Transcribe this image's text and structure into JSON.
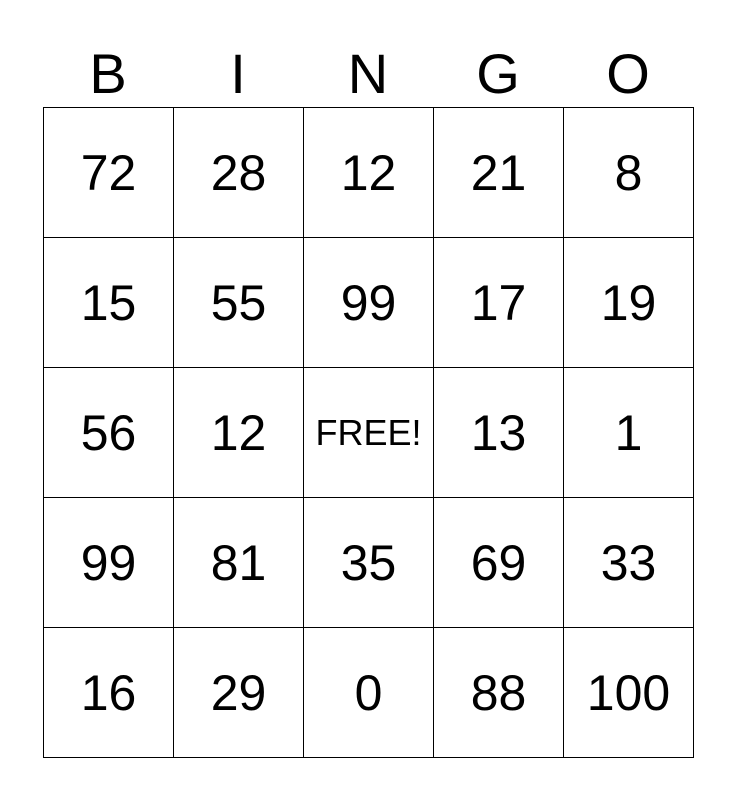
{
  "header": [
    "B",
    "I",
    "N",
    "G",
    "O"
  ],
  "rows": [
    [
      "72",
      "28",
      "12",
      "21",
      "8"
    ],
    [
      "15",
      "55",
      "99",
      "17",
      "19"
    ],
    [
      "56",
      "12",
      "FREE!",
      "13",
      "1"
    ],
    [
      "99",
      "81",
      "35",
      "69",
      "33"
    ],
    [
      "16",
      "29",
      "0",
      "88",
      "100"
    ]
  ]
}
